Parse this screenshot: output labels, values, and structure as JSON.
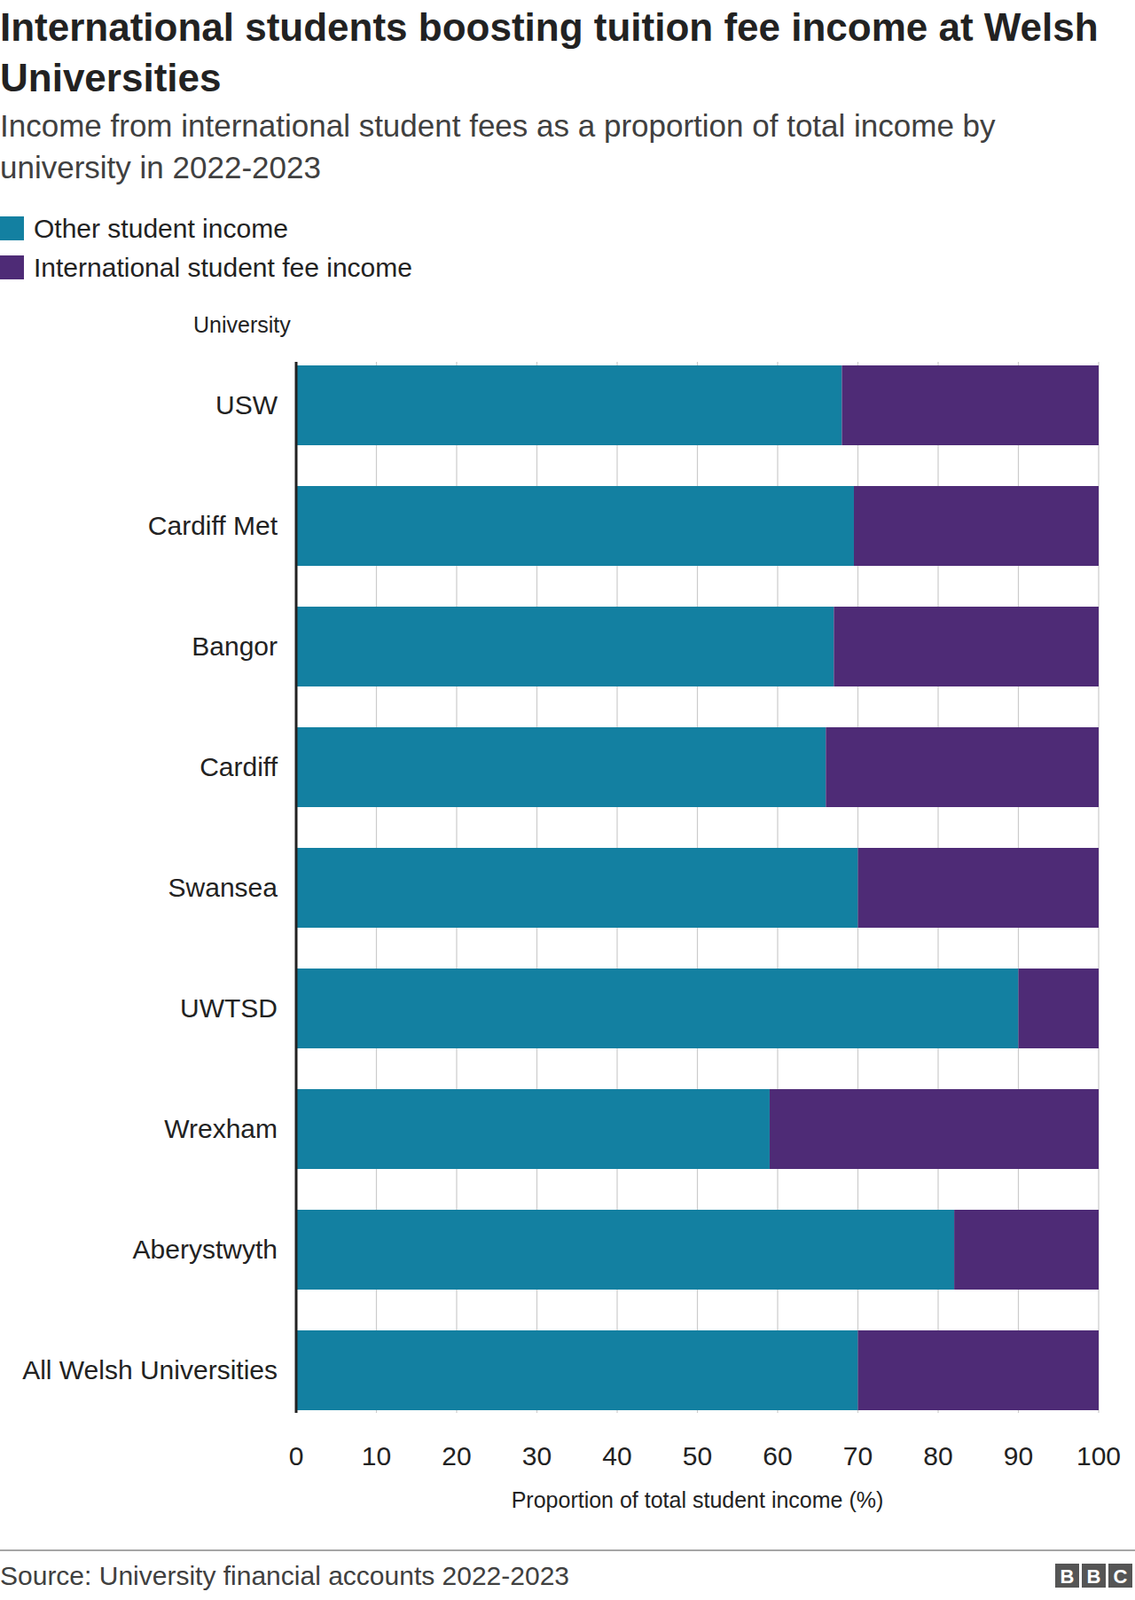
{
  "chart_data": {
    "type": "bar",
    "orientation": "horizontal",
    "stacked": true,
    "title": "International students boosting tuition fee income at Welsh Universities",
    "subtitle": "Income from international student fees as a proportion of total income by university in 2022-2023",
    "y_label": "University",
    "x_label": "Proportion of total student income (%)",
    "source": "Source: University financial accounts 2022-2023",
    "credit": "BBC",
    "categories": [
      "USW",
      "Cardiff Met",
      "Bangor",
      "Cardiff",
      "Swansea",
      "UWTSD",
      "Wrexham",
      "Aberystwyth",
      "All Welsh Universities"
    ],
    "series": [
      {
        "name": "Other student income",
        "color": "#1380a1",
        "values": [
          68,
          69.5,
          67,
          66,
          70,
          90,
          59,
          82,
          70
        ]
      },
      {
        "name": "International student fee income",
        "color": "#4e2b76",
        "values": [
          32,
          30.5,
          33,
          34,
          30,
          10,
          41,
          18,
          30
        ]
      }
    ],
    "xlim": [
      0,
      100
    ],
    "xticks": [
      0,
      10,
      20,
      30,
      40,
      50,
      60,
      70,
      80,
      90,
      100
    ],
    "grid": true,
    "legend": "top-left"
  }
}
